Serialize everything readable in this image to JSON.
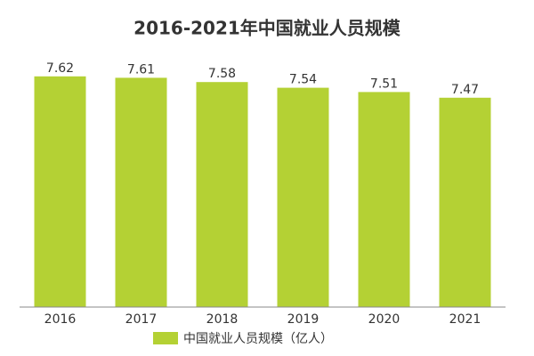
{
  "chart_data": {
    "type": "bar",
    "title": "2016-2021年中国就业人员规模",
    "categories": [
      "2016",
      "2017",
      "2018",
      "2019",
      "2020",
      "2021"
    ],
    "series": [
      {
        "name": "中国就业人员规模（亿人）",
        "color": "#b4d134",
        "values": [
          7.62,
          7.61,
          7.58,
          7.54,
          7.51,
          7.47
        ]
      }
    ],
    "ylim": [
      6,
      8
    ]
  }
}
